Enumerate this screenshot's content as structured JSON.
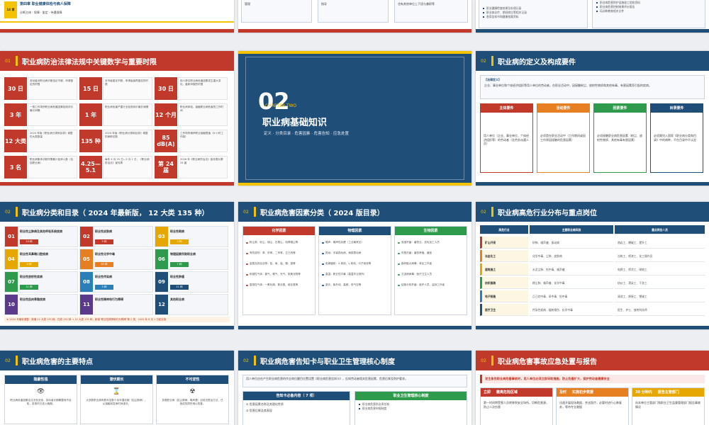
{
  "top_row": {
    "s1": {
      "badge": "14 章",
      "chapter": "第四章 职业健康体检与病人保障",
      "sub": "诊断主体 · 保障 · 鉴定 · 待遇保障"
    },
    "s2": {
      "col1": "管理",
      "col2": "指导",
      "col3": "也有其他单位上下班与兼职等"
    },
    "s3": {
      "left": [
        "职业健康检查结果及处理记录",
        "职业病诊疗、期间岗位等相关记录",
        "各类告知书和健康档案资料"
      ],
      "right": [
        "职业病危害防护设施竣工验收资料",
        "职业病危害控制效果评价报告",
        "培训和教育相关文件"
      ]
    }
  },
  "slide_law": {
    "num": "01",
    "title": "职业病防治法律法规中关键数字与重要时限",
    "facts": [
      {
        "key": "30 日",
        "text": "劳动者对职业病诊断结论不服，申请鉴定的时限"
      },
      {
        "key": "15 日",
        "text": "对市级鉴定不服，申请省级再鉴定的时限"
      },
      {
        "key": "30 日",
        "text": "用人单位职业病危害因素发生重大变化，重新申报的时限"
      },
      {
        "key": "3 年",
        "text": "一般工作场所职业病危害因素检测评价最长间隔"
      },
      {
        "key": "1 年",
        "text": "职业病危害严重行业检测评价最长间隔"
      },
      {
        "key": "12 个月",
        "text": "职业病体检、接触职业病危害的工作时间"
      },
      {
        "key": "12 大类",
        "text": "2024 年版《职业病分类和目录》调整的大类数量"
      },
      {
        "key": "135 种",
        "text": "2024 年版《职业病分类和目录》调整的病种总数"
      },
      {
        "key": "85 dB(A)",
        "text": "工作场所噪声职业接触限值（8 小时工作制）"
      },
      {
        "key": "3 名",
        "text": "职业病集体诊断所需最少医师人数（包括职业病）"
      },
      {
        "key": "4.25—5.1",
        "text": "每年 4 月 25 日—5 月 1 日，《职业病防治法》宣传周"
      },
      {
        "key": "第 24 届",
        "text": "2026 年《职业病防治法》宣传周为第 24 届"
      }
    ]
  },
  "slide_section": {
    "num": "02",
    "en": "CHAPTER TWO",
    "title": "职业病基础知识",
    "sub": "定义 · 分类目录 · 危害因素 · 危害告知 · 应急处置"
  },
  "slide_definition": {
    "num": "02",
    "title": "职业病的定义及构成要件",
    "legal_label": "【法律定义】",
    "legal_text": "企业、事业单位和个体经济组织等用人单位的劳动者，在职业活动中，因接触粉尘、放射性物质和其他有毒、有害因素而引起的疾病。",
    "elements": [
      {
        "head": "主体要件",
        "text": "用人单位（企业、事业单位、个体经济组织等）的劳动者（含劳务派遣人员）",
        "color": "#c0392b"
      },
      {
        "head": "活动要件",
        "text": "必须是在职业活动中（工作期间或因工作原因接触的危害因素）",
        "color": "#e67e22"
      },
      {
        "head": "因素要件",
        "text": "必须接触职业病危害因素（粉尘、放射性物质、其他有毒有害因素）",
        "color": "#2e9a4b"
      },
      {
        "head": "目录要件",
        "text": "必须属列入国家《职业病分类和目录》中的病种，不在目录中不认定",
        "color": "#1f4e79"
      }
    ]
  },
  "slide_catalog": {
    "num": "02",
    "title": "职业病分类和目录（ 2024 年最新版， 12 大类 135 种）",
    "categories": [
      {
        "no": "01",
        "name": "职业性尘肺病及其他呼吸系统疾病",
        "count": "19 种",
        "color": "#c0392b"
      },
      {
        "no": "02",
        "name": "职业性皮肤病",
        "count": "9 种",
        "color": "#c0392b"
      },
      {
        "no": "03",
        "name": "职业性眼病",
        "count": "3 种",
        "color": "#e6a700"
      },
      {
        "no": "04",
        "name": "职业性耳鼻喉口腔疾病",
        "count": "4 种",
        "color": "#e6a700"
      },
      {
        "no": "05",
        "name": "职业性化学中毒",
        "count": "60 种",
        "color": "#e67e22"
      },
      {
        "no": "06",
        "name": "物理因素所致职业病",
        "count": "7 种",
        "color": "#2e9a4b"
      },
      {
        "no": "07",
        "name": "职业性放射性疾病",
        "count": "11 种",
        "color": "#2e9a4b"
      },
      {
        "no": "08",
        "name": "职业性传染病",
        "count": "5 种",
        "color": "#2a7fb8"
      },
      {
        "no": "09",
        "name": "职业性肿瘤",
        "count": "11 种",
        "color": "#1f4e79"
      },
      {
        "no": "10",
        "name": "职业性肌肉骨骼疾病",
        "count": "",
        "color": "#5b3a8c"
      },
      {
        "no": "11",
        "name": "职业性精神和行为障碍",
        "count": "",
        "color": "#5b3a8c"
      },
      {
        "no": "12",
        "name": "其他职业病",
        "count": "",
        "color": "#1f4e79"
      }
    ],
    "note": "★ 2024 年最新调整：新增 12 大类 135 种，在原 132 种 → 12 大类 135 种，新增“职业性精神和行为障碍”等 2 类，2025 年 8 月 1 日起实施"
  },
  "slide_factors": {
    "num": "02",
    "title": "职业病危害因素分类（ 2024 版目录）",
    "columns": [
      {
        "head": "化学因素",
        "color": "#c0392b",
        "dot": "dot-red",
        "items": [
          "粉尘类：砂尘、煤尘、石棉尘、电焊烟尘等",
          "有机溶剂：苯、甲苯、二甲苯、正己烷等",
          "金属及其化合物：铅、汞、锰、镉、铬等",
          "刺激性气体：氯气、氨气、光气、氮氧化物等",
          "窒息性气体：一氧化碳、氰化氢、硫化氢等"
        ]
      },
      {
        "head": "物理因素",
        "color": "#1f4e79",
        "dot": "dot-blue",
        "items": [
          "噪声：噪声性耳聋（工业最常见）",
          "振动：手臂振动病、局部振动病",
          "电离辐射：X 射线、γ 射线、中子射线等",
          "高温：职业性中暑（高温作业场所）",
          "激光、紫外线、高频、低气压等"
        ]
      },
      {
        "head": "生物因素",
        "color": "#2e9a4b",
        "dot": "dot-green",
        "items": [
          "炭疽杆菌：畜牧业、皮毛加工人员",
          "布鲁氏菌：畜牧养殖、兽医",
          "森林脑炎病毒：林区工作者",
          "艾滋病病毒：医疗卫生人员",
          "结核分枝杆菌：医护人员、监狱工作者"
        ]
      }
    ]
  },
  "slide_industry": {
    "num": "02",
    "title": "职业病高危行业分布与重点岗位",
    "headers": [
      "高危行业",
      "主要职业病风险",
      "重点岗位人员"
    ],
    "rows": [
      {
        "industry": "矿山开采",
        "risk": "矽肺、噪声聋、振动病",
        "posts": "凿岩工、爆破工、提升工",
        "color": "#c0392b"
      },
      {
        "industry": "冶金化工",
        "risk": "化学中毒、尘肺、皮肤病",
        "posts": "冶炼工、喷漆工、化工操作员",
        "color": "#e67e22"
      },
      {
        "industry": "建筑施工",
        "risk": "水泥尘肺、铅中毒、噪声聋",
        "posts": "电焊工、喷涂工、砌筑工",
        "color": "#e6a700"
      },
      {
        "industry": "纺织服装",
        "risk": "棉尘肺、噪声聋、化学中毒",
        "posts": "纺纱工、漂染工、干洗工",
        "color": "#2e9a4b"
      },
      {
        "industry": "电子制造",
        "risk": "正己烷中毒、苯中毒、铅中毒",
        "posts": "清洗工、焊接工、镀锡工",
        "color": "#2a7fb8"
      },
      {
        "industry": "医疗卫生",
        "risk": "传染性疾病、辐射损伤、化学中毒",
        "posts": "医生、护士、放射科技师",
        "color": "#1f4e79"
      }
    ]
  },
  "slide_features": {
    "num": "02",
    "title": "职业病危害的主要特点",
    "items": [
      {
        "head": "隐蔽性强",
        "icon": "eye-icon",
        "glyph": "👁",
        "text": "职业病危害因素往往无色无味，劳动者长期暴露而不自知，发现时已进入晚期。"
      },
      {
        "head": "潜伏期长",
        "icon": "hourglass-icon",
        "glyph": "⌛",
        "text": "大多数职业病有数年至数十余年潜伏期（如尘肺病），从接触到发病时间漫长。"
      },
      {
        "head": "不可逆性",
        "icon": "radiation-icon",
        "glyph": "☢",
        "text": "多数职业病（如尘肺病、噪声聋）目前无根治方法，已造成的损伤难以恢复。"
      }
    ]
  },
  "slide_notice": {
    "num": "02",
    "title": "职业病危害告知卡与职业卫生管理核心制度",
    "intro": "用人单位应在产生职业病危害的作业岗位醒目位置设置《职业病危害告知卡》，告知劳动者相关危害因素、危害后果及防护要求。",
    "left_head": "告知卡必备内容（ 7 项）",
    "left_items": [
      "① 危害因素名称及其理化性质",
      "② 危害后果及其表现"
    ],
    "right_head": "职业卫生管理核心制度",
    "right_items": [
      "职业病危害防治责任制",
      "职业病危害申报制度"
    ]
  },
  "slide_emergency": {
    "num": "02",
    "title": "职业病危害事故应急处置与报告",
    "banner": "发生急性职业病危害事故时，用人单位必须立即采取措施，防止危害扩大，保护劳动者健康安全",
    "steps": [
      {
        "tag": "立即",
        "head": "撤离危险区域",
        "text": "第一时间将受害人员转移到安全场所，切断危害源，防止二次伤害"
      },
      {
        "tag": "及时",
        "head": "实施初步救援",
        "text": "迅速开展现场救援，并送医疗，必要时进行心肺复苏，等待专业救援"
      },
      {
        "tag": "30 分钟内",
        "head": "报告主管部门",
        "text": "向本单位主管部门和职业卫生监督管理部门报告事故情况"
      }
    ]
  }
}
